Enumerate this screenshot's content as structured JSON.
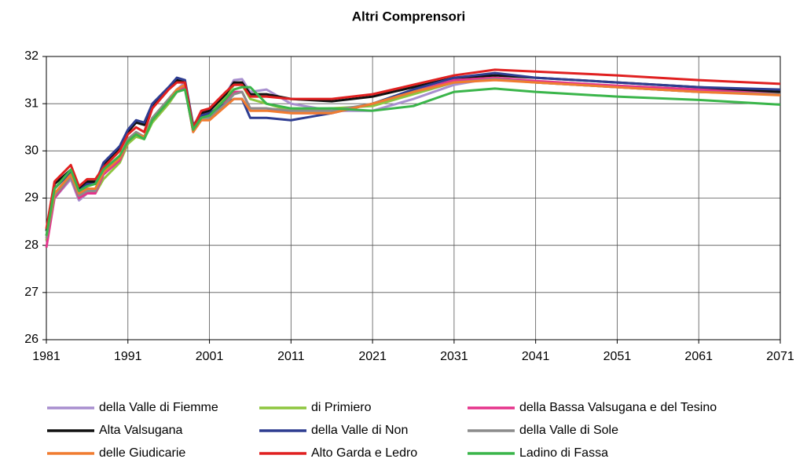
{
  "chart_data": {
    "type": "line",
    "title": "Altri Comprensori",
    "x": [
      1981,
      1982,
      1984,
      1985,
      1986,
      1987,
      1988,
      1990,
      1991,
      1992,
      1993,
      1994,
      1996,
      1997,
      1998,
      1999,
      2000,
      2001,
      2003,
      2004,
      2005,
      2006,
      2008,
      2011,
      2016,
      2021,
      2026,
      2031,
      2036,
      2041,
      2051,
      2061,
      2071
    ],
    "xlim": [
      1981,
      2071
    ],
    "xticks": [
      1981,
      1991,
      2001,
      2011,
      2021,
      2031,
      2041,
      2051,
      2061,
      2071
    ],
    "ylim": [
      26,
      32
    ],
    "yticks": [
      26,
      27,
      28,
      29,
      30,
      31,
      32
    ],
    "grid": true,
    "series": [
      {
        "name": "della Valle di Fiemme",
        "color": "#a88fcf",
        "values": [
          28.1,
          29.0,
          29.4,
          28.95,
          29.1,
          29.1,
          29.5,
          29.8,
          30.2,
          30.35,
          30.3,
          30.7,
          31.1,
          31.3,
          31.45,
          30.45,
          30.75,
          30.8,
          31.2,
          31.5,
          31.52,
          31.25,
          31.3,
          31.0,
          30.85,
          30.85,
          31.1,
          31.4,
          31.55,
          31.45,
          31.35,
          31.25,
          31.2
        ]
      },
      {
        "name": "di Primiero",
        "color": "#8dc63f",
        "values": [
          28.1,
          29.05,
          29.45,
          29.0,
          29.1,
          29.1,
          29.4,
          29.75,
          30.15,
          30.3,
          30.25,
          30.6,
          31.0,
          31.25,
          31.35,
          30.4,
          30.7,
          30.75,
          31.15,
          31.4,
          31.4,
          31.1,
          31.0,
          30.85,
          30.9,
          30.95,
          31.2,
          31.45,
          31.52,
          31.45,
          31.35,
          31.25,
          31.2
        ]
      },
      {
        "name": "della Bassa Valsugana e del Tesino",
        "color": "#e5348c",
        "values": [
          27.95,
          29.0,
          29.45,
          29.0,
          29.1,
          29.1,
          29.5,
          29.8,
          30.2,
          30.35,
          30.3,
          30.65,
          31.05,
          31.25,
          31.35,
          30.4,
          30.7,
          30.75,
          31.05,
          31.25,
          31.25,
          30.9,
          30.9,
          30.8,
          30.8,
          31.0,
          31.25,
          31.5,
          31.55,
          31.48,
          31.38,
          31.3,
          31.22
        ]
      },
      {
        "name": "Alta Valsugana",
        "color": "#111111",
        "values": [
          28.3,
          29.3,
          29.6,
          29.2,
          29.35,
          29.35,
          29.7,
          30.05,
          30.4,
          30.6,
          30.55,
          30.95,
          31.35,
          31.5,
          31.45,
          30.5,
          30.8,
          30.85,
          31.2,
          31.45,
          31.45,
          31.2,
          31.2,
          31.1,
          31.05,
          31.15,
          31.35,
          31.55,
          31.6,
          31.55,
          31.45,
          31.35,
          31.25
        ]
      },
      {
        "name": "della Valle di Non",
        "color": "#2e3d91",
        "values": [
          28.2,
          29.2,
          29.55,
          29.15,
          29.3,
          29.3,
          29.75,
          30.1,
          30.45,
          30.65,
          30.6,
          31.0,
          31.35,
          31.55,
          31.5,
          30.55,
          30.75,
          30.8,
          31.0,
          31.1,
          31.1,
          30.7,
          30.7,
          30.65,
          30.8,
          31.0,
          31.3,
          31.55,
          31.65,
          31.55,
          31.45,
          31.35,
          31.3
        ]
      },
      {
        "name": "della Valle di Sole",
        "color": "#8c8c8c",
        "values": [
          28.15,
          29.05,
          29.45,
          29.05,
          29.15,
          29.15,
          29.55,
          29.85,
          30.25,
          30.4,
          30.3,
          30.7,
          31.1,
          31.3,
          31.4,
          30.45,
          30.7,
          30.7,
          31.0,
          31.2,
          31.25,
          30.9,
          30.9,
          30.85,
          30.85,
          31.0,
          31.25,
          31.45,
          31.52,
          31.45,
          31.35,
          31.25,
          31.2
        ]
      },
      {
        "name": "delle Giudicarie",
        "color": "#f07c30",
        "values": [
          28.2,
          29.1,
          29.5,
          29.1,
          29.2,
          29.2,
          29.55,
          29.85,
          30.2,
          30.35,
          30.3,
          30.65,
          31.05,
          31.3,
          31.4,
          30.4,
          30.65,
          30.65,
          30.95,
          31.1,
          31.1,
          30.85,
          30.85,
          30.8,
          30.8,
          31.0,
          31.25,
          31.45,
          31.5,
          31.45,
          31.35,
          31.25,
          31.18
        ]
      },
      {
        "name": "Alto Garda e Ledro",
        "color": "#e02020",
        "values": [
          28.35,
          29.35,
          29.7,
          29.25,
          29.4,
          29.4,
          29.65,
          30.0,
          30.35,
          30.5,
          30.4,
          30.9,
          31.3,
          31.45,
          31.45,
          30.5,
          30.85,
          30.9,
          31.25,
          31.4,
          31.4,
          31.15,
          31.15,
          31.1,
          31.1,
          31.2,
          31.4,
          31.6,
          31.72,
          31.68,
          31.6,
          31.5,
          31.42
        ]
      },
      {
        "name": "Ladino di Fassa",
        "color": "#3ab54a",
        "values": [
          28.2,
          29.2,
          29.6,
          29.15,
          29.25,
          29.3,
          29.6,
          29.9,
          30.2,
          30.35,
          30.25,
          30.65,
          31.05,
          31.25,
          31.3,
          30.45,
          30.7,
          30.75,
          31.1,
          31.3,
          31.35,
          31.35,
          31.0,
          30.9,
          30.9,
          30.85,
          30.95,
          31.25,
          31.32,
          31.25,
          31.15,
          31.08,
          30.98
        ]
      }
    ]
  }
}
